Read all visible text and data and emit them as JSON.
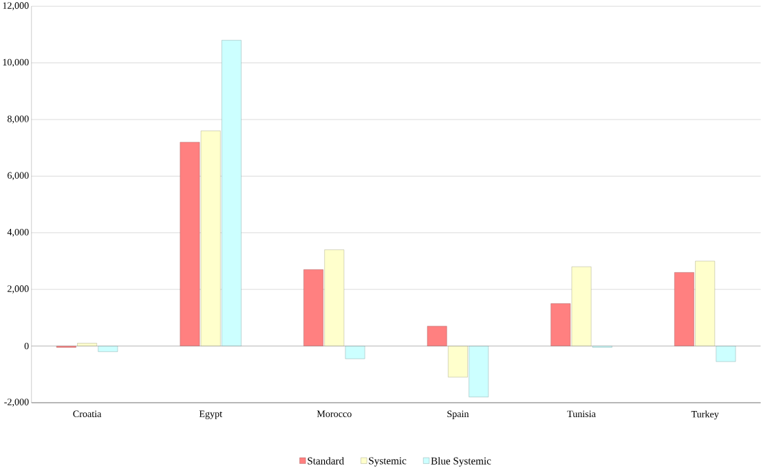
{
  "chart_data": {
    "type": "bar",
    "categories": [
      "Croatia",
      "Egypt",
      "Morocco",
      "Spain",
      "Tunisia",
      "Turkey"
    ],
    "series": [
      {
        "name": "Standard",
        "color": "#ff8080",
        "values": [
          -50,
          7200,
          2700,
          700,
          1500,
          2600
        ]
      },
      {
        "name": "Systemic",
        "color": "#ffffcc",
        "values": [
          100,
          7600,
          3400,
          -1100,
          2800,
          3000
        ]
      },
      {
        "name": "Blue Systemic",
        "color": "#ccffff",
        "values": [
          -200,
          10800,
          -450,
          -1800,
          -50,
          -550
        ]
      }
    ],
    "ylim": [
      -2000,
      12000
    ],
    "yticks": [
      {
        "value": -2000,
        "label": "-2,000"
      },
      {
        "value": 0,
        "label": "0"
      },
      {
        "value": 2000,
        "label": "2,000"
      },
      {
        "value": 4000,
        "label": "4,000"
      },
      {
        "value": 6000,
        "label": "6,000"
      },
      {
        "value": 8000,
        "label": "8,000"
      },
      {
        "value": 10000,
        "label": "10,000"
      },
      {
        "value": 12000,
        "label": "12,000"
      }
    ],
    "grid": "y",
    "legend": "bottom"
  }
}
